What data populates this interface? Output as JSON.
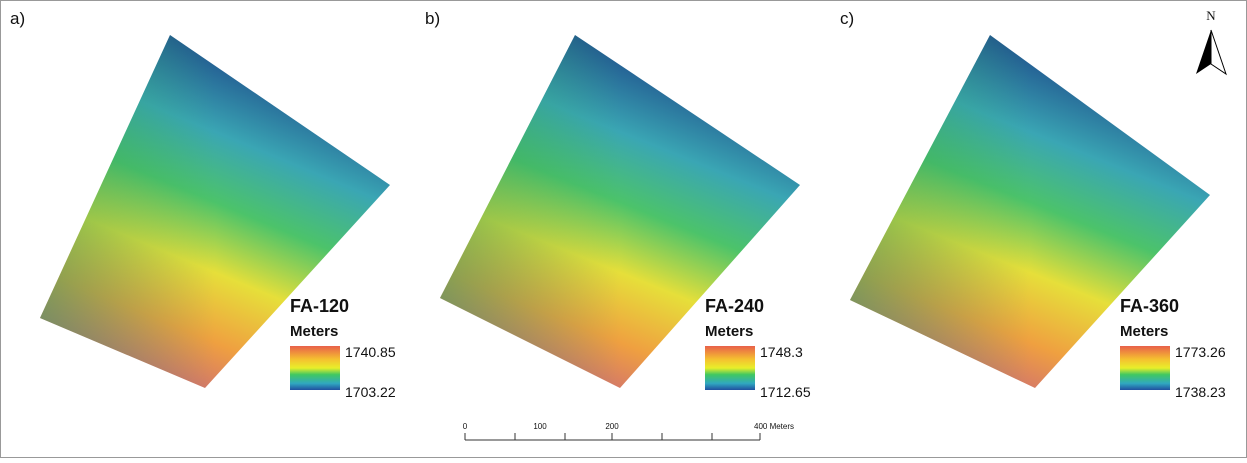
{
  "panels": [
    {
      "label": "a)",
      "title": "FA-120",
      "units": "Meters",
      "max": "1740.85",
      "min": "1703.22"
    },
    {
      "label": "b)",
      "title": "FA-240",
      "units": "Meters",
      "max": "1748.3",
      "min": "1712.65"
    },
    {
      "label": "c)",
      "title": "FA-360",
      "units": "Meters",
      "max": "1773.26",
      "min": "1738.23"
    }
  ],
  "north": "N",
  "scale_bar": {
    "labels": [
      "0",
      "100",
      "200",
      "400 Meters"
    ]
  }
}
